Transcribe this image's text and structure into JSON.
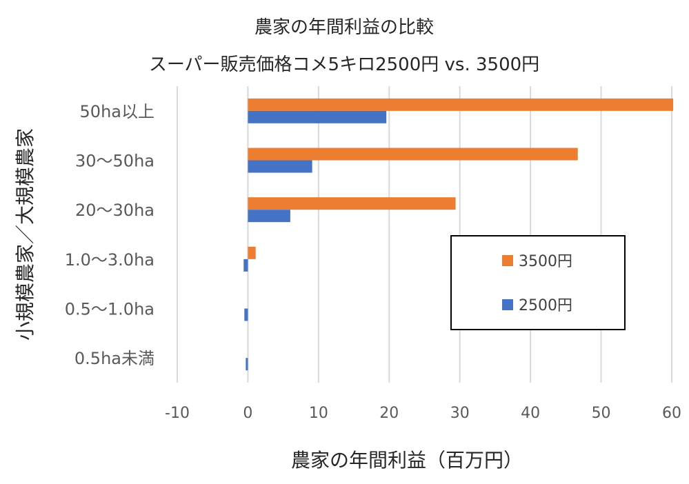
{
  "chart_data": {
    "type": "bar",
    "orientation": "horizontal",
    "title": "農家の年間利益の比較",
    "subtitle": "スーパー販売価格コメ5キロ2500円 vs. 3500円",
    "xlabel": "農家の年間利益（百万円）",
    "ylabel": "小規模農家／大規模農家",
    "categories": [
      "50ha以上",
      "30〜50ha",
      "20〜30ha",
      "1.0〜3.0ha",
      "0.5〜1.0ha",
      "0.5ha未満"
    ],
    "series": [
      {
        "name": "3500円",
        "color": "#ED7D31",
        "values": [
          60.2,
          46.7,
          29.4,
          1.1,
          0.0,
          0.0
        ]
      },
      {
        "name": "2500円",
        "color": "#4472C4",
        "values": [
          19.6,
          9.1,
          6.0,
          -0.6,
          -0.5,
          -0.3
        ]
      }
    ],
    "xlim": [
      -10,
      60
    ],
    "xticks": [
      {
        "label": "-10",
        "value": -10,
        "color": "#FF0000"
      },
      {
        "label": "0",
        "value": 0,
        "color": "#595959"
      },
      {
        "label": "10",
        "value": 10,
        "color": "#595959"
      },
      {
        "label": "20",
        "value": 20,
        "color": "#595959"
      },
      {
        "label": "30",
        "value": 30,
        "color": "#595959"
      },
      {
        "label": "40",
        "value": 40,
        "color": "#595959"
      },
      {
        "label": "50",
        "value": 50,
        "color": "#595959"
      },
      {
        "label": "60",
        "value": 60,
        "color": "#595959"
      }
    ],
    "grid": true,
    "legend_position": "right"
  }
}
